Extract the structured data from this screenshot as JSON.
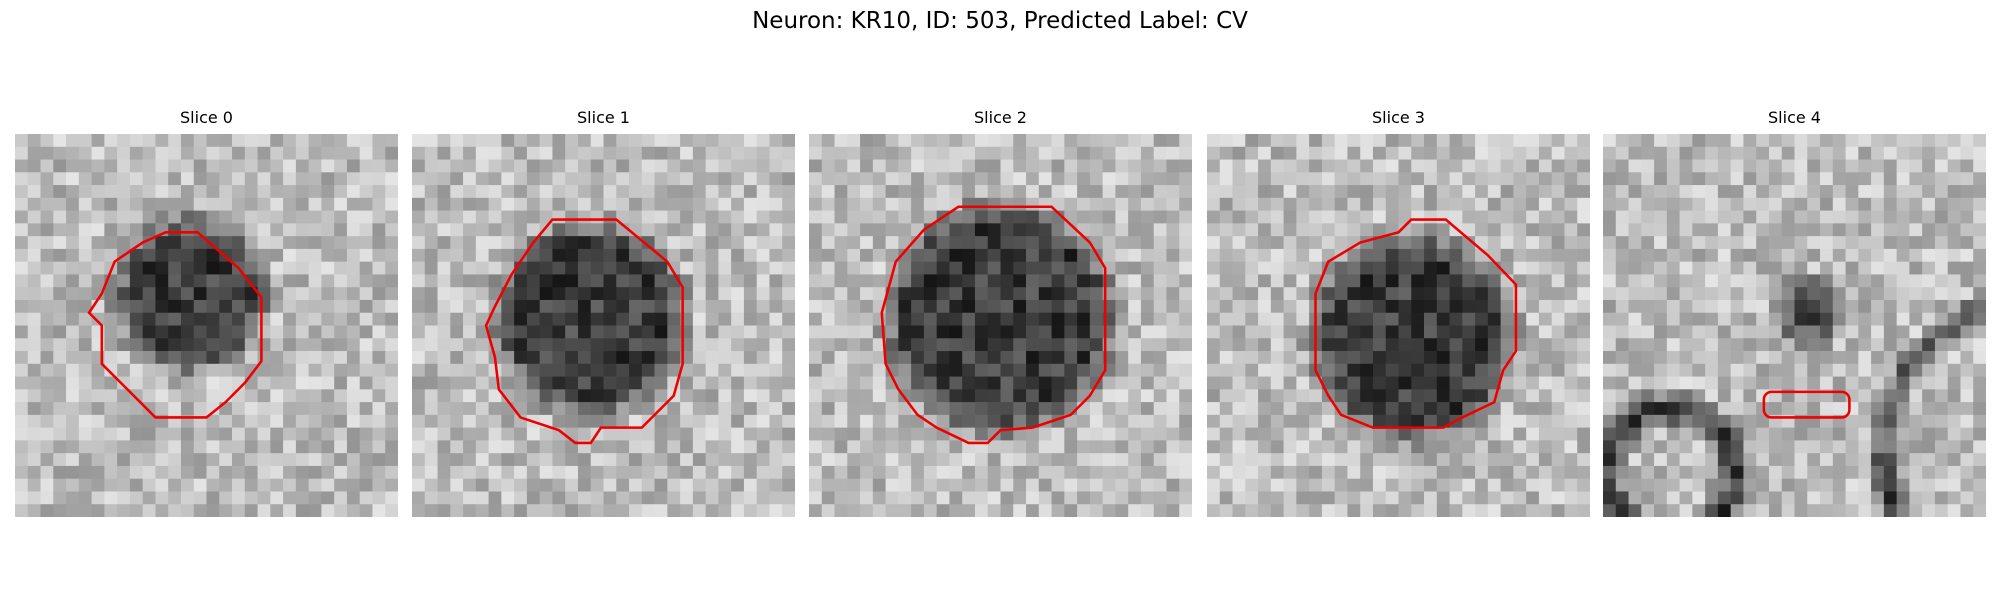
{
  "title": "Neuron: KR10, ID: 503, Predicted Label: CV",
  "panels": [
    {
      "title": "Slice 0"
    },
    {
      "title": "Slice 1"
    },
    {
      "title": "Slice 2"
    },
    {
      "title": "Slice 3"
    },
    {
      "title": "Slice 4"
    }
  ]
}
